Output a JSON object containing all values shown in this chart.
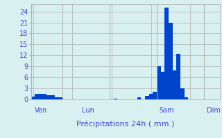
{
  "title": "",
  "xlabel": "Précipitations 24h ( mm )",
  "ylabel": "",
  "background_color": "#d8f0f0",
  "bar_color": "#0044cc",
  "grid_color": "#b0b0b0",
  "text_color": "#4444cc",
  "ylim": [
    0,
    26
  ],
  "yticks": [
    0,
    3,
    6,
    9,
    12,
    15,
    18,
    21,
    24
  ],
  "n_bars": 48,
  "day_labels": [
    "Ven",
    "Lun",
    "Sam",
    "Dim"
  ],
  "day_positions": [
    2,
    14,
    34,
    46
  ],
  "day_boundaries": [
    0,
    8,
    20,
    32,
    44,
    48
  ],
  "values": [
    0.8,
    1.5,
    1.5,
    1.5,
    1.2,
    1.2,
    0.5,
    0.5,
    0.0,
    0.0,
    0.0,
    0.0,
    0.0,
    0.0,
    0.0,
    0.0,
    0.0,
    0.0,
    0.0,
    0.0,
    0.0,
    0.2,
    0.0,
    0.0,
    0.0,
    0.0,
    0.0,
    0.5,
    0.0,
    1.0,
    1.5,
    2.0,
    9.0,
    7.5,
    25.0,
    21.0,
    8.0,
    12.5,
    3.0,
    0.5,
    0.0,
    0.0,
    0.0,
    0.0,
    0.0,
    0.0,
    0.0,
    0.0
  ]
}
